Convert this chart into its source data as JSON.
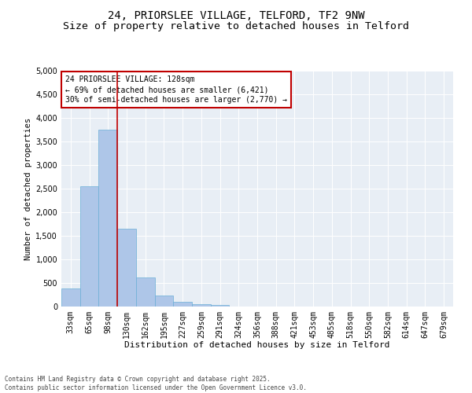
{
  "title1": "24, PRIORSLEE VILLAGE, TELFORD, TF2 9NW",
  "title2": "Size of property relative to detached houses in Telford",
  "xlabel": "Distribution of detached houses by size in Telford",
  "ylabel": "Number of detached properties",
  "categories": [
    "33sqm",
    "65sqm",
    "98sqm",
    "130sqm",
    "162sqm",
    "195sqm",
    "227sqm",
    "259sqm",
    "291sqm",
    "324sqm",
    "356sqm",
    "388sqm",
    "421sqm",
    "453sqm",
    "485sqm",
    "518sqm",
    "550sqm",
    "582sqm",
    "614sqm",
    "647sqm",
    "679sqm"
  ],
  "values": [
    380,
    2550,
    3750,
    1650,
    620,
    235,
    95,
    55,
    40,
    0,
    0,
    0,
    0,
    0,
    0,
    0,
    0,
    0,
    0,
    0,
    0
  ],
  "bar_color": "#aec6e8",
  "bar_edge_color": "#6baed6",
  "vline_x": 3,
  "vline_color": "#c00000",
  "annotation_text": "24 PRIORSLEE VILLAGE: 128sqm\n← 69% of detached houses are smaller (6,421)\n30% of semi-detached houses are larger (2,770) →",
  "annotation_box_color": "#c00000",
  "ylim": [
    0,
    5000
  ],
  "yticks": [
    0,
    500,
    1000,
    1500,
    2000,
    2500,
    3000,
    3500,
    4000,
    4500,
    5000
  ],
  "background_color": "#e8eef5",
  "footer_line1": "Contains HM Land Registry data © Crown copyright and database right 2025.",
  "footer_line2": "Contains public sector information licensed under the Open Government Licence v3.0.",
  "title1_fontsize": 10,
  "title2_fontsize": 9.5,
  "xlabel_fontsize": 8,
  "ylabel_fontsize": 7.5,
  "tick_fontsize": 7,
  "annotation_fontsize": 7,
  "footer_fontsize": 5.5
}
